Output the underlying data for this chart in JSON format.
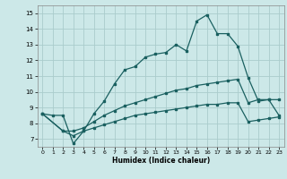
{
  "title": "",
  "xlabel": "Humidex (Indice chaleur)",
  "bg_color": "#cce8e8",
  "grid_color": "#aacccc",
  "line_color": "#1a6060",
  "xlim": [
    -0.5,
    23.5
  ],
  "ylim": [
    6.5,
    15.5
  ],
  "xticks": [
    0,
    1,
    2,
    3,
    4,
    5,
    6,
    7,
    8,
    9,
    10,
    11,
    12,
    13,
    14,
    15,
    16,
    17,
    18,
    19,
    20,
    21,
    22,
    23
  ],
  "yticks": [
    7,
    8,
    9,
    10,
    11,
    12,
    13,
    14,
    15
  ],
  "line1_x": [
    0,
    1,
    2,
    3,
    4,
    5,
    6,
    7,
    8,
    9,
    10,
    11,
    12,
    13,
    14,
    15,
    16,
    17,
    18,
    19,
    20,
    21,
    22,
    23
  ],
  "line1_y": [
    8.6,
    8.5,
    8.5,
    6.7,
    7.5,
    8.6,
    9.4,
    10.5,
    11.4,
    11.6,
    12.2,
    12.4,
    12.5,
    13.0,
    12.6,
    14.5,
    14.9,
    13.7,
    13.7,
    12.9,
    10.9,
    9.4,
    9.5,
    9.5
  ],
  "line2_x": [
    0,
    2,
    3,
    4,
    5,
    6,
    7,
    8,
    9,
    10,
    11,
    12,
    13,
    14,
    15,
    16,
    17,
    18,
    19,
    20,
    21,
    22,
    23
  ],
  "line2_y": [
    8.6,
    7.5,
    7.5,
    7.7,
    8.1,
    8.5,
    8.8,
    9.1,
    9.3,
    9.5,
    9.7,
    9.9,
    10.1,
    10.2,
    10.4,
    10.5,
    10.6,
    10.7,
    10.8,
    9.3,
    9.5,
    9.5,
    8.5
  ],
  "line3_x": [
    0,
    2,
    3,
    4,
    5,
    6,
    7,
    8,
    9,
    10,
    11,
    12,
    13,
    14,
    15,
    16,
    17,
    18,
    19,
    20,
    21,
    22,
    23
  ],
  "line3_y": [
    8.6,
    7.5,
    7.2,
    7.5,
    7.7,
    7.9,
    8.1,
    8.3,
    8.5,
    8.6,
    8.7,
    8.8,
    8.9,
    9.0,
    9.1,
    9.2,
    9.2,
    9.3,
    9.3,
    8.1,
    8.2,
    8.3,
    8.4
  ]
}
